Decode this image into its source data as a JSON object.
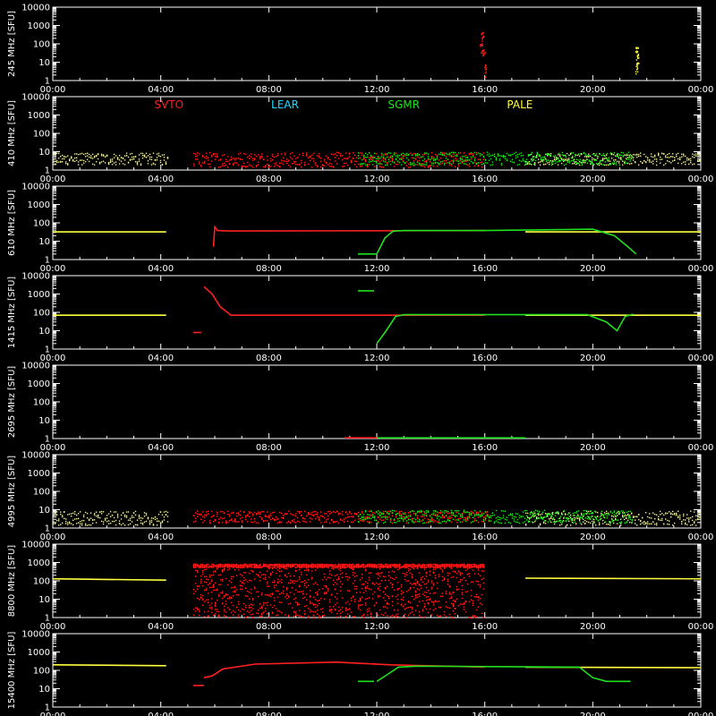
{
  "chart_data": {
    "type": "scatter",
    "x_unit": "UT",
    "x_ticks": [
      "00:00",
      "04:00",
      "08:00",
      "12:00",
      "16:00",
      "20:00",
      "00:00"
    ],
    "xlim_hours": [
      0,
      24
    ],
    "y_scale": "log",
    "ylim": [
      1,
      10000
    ],
    "y_ticks": [
      "1",
      "10",
      "100",
      "1000",
      "10000"
    ],
    "y_unit": "[SFU]",
    "legend_placement": "top-inside-second-panel",
    "legend": [
      {
        "name": "SVTO",
        "color": "#ff2020"
      },
      {
        "name": "LEAR",
        "color": "#20d8ff"
      },
      {
        "name": "SGMR",
        "color": "#20e020"
      },
      {
        "name": "PALE",
        "color": "#ffff40"
      }
    ],
    "panels": [
      {
        "label": "245 MHz",
        "series": [
          {
            "name": "SVTO",
            "segments": [
              {
                "t": [
                  15.85,
                  15.9,
                  15.95,
                  16.0
                ],
                "v": [
                  80,
                  300,
                  40,
                  5
                ],
                "scatter": true
              }
            ]
          },
          {
            "name": "PALE",
            "segments": [
              {
                "t": [
                  21.6,
                  21.62,
                  21.65
                ],
                "v": [
                  8,
                  60,
                  20
                ],
                "scatter": true
              }
            ]
          }
        ]
      },
      {
        "label": "410 MHz",
        "series": [
          {
            "name": "PALE",
            "segments": [
              {
                "t": [
                  0,
                  4.3
                ],
                "v": [
                  2,
                  9
                ],
                "band": true
              },
              {
                "t": [
                  17.5,
                  24
                ],
                "v": [
                  2,
                  9
                ],
                "band": true
              }
            ]
          },
          {
            "name": "SVTO",
            "segments": [
              {
                "t": [
                  5.2,
                  16
                ],
                "v": [
                  1.5,
                  10
                ],
                "band": true
              }
            ]
          },
          {
            "name": "SGMR",
            "segments": [
              {
                "t": [
                  11.3,
                  21.5
                ],
                "v": [
                  2,
                  10
                ],
                "band": true
              }
            ]
          }
        ]
      },
      {
        "label": "610 MHz",
        "series": [
          {
            "name": "PALE",
            "segments": [
              {
                "t": [
                  0,
                  4.2
                ],
                "v": [
                  32,
                  32
                ]
              },
              {
                "t": [
                  17.5,
                  24
                ],
                "v": [
                  32,
                  32
                ]
              }
            ]
          },
          {
            "name": "SVTO",
            "segments": [
              {
                "t": [
                  5.95,
                  6.0,
                  6.1,
                  6.5,
                  16
                ],
                "v": [
                  5,
                  60,
                  38,
                  36,
                  38
                ]
              }
            ]
          },
          {
            "name": "SGMR",
            "segments": [
              {
                "t": [
                  11.3,
                  11.8,
                  12.0
                ],
                "v": [
                  2,
                  2,
                  2
                ]
              },
              {
                "t": [
                  12.0,
                  12.3,
                  12.6,
                  13.0,
                  16,
                  20,
                  20.8,
                  21.3,
                  21.6
                ],
                "v": [
                  2,
                  15,
                  35,
                  38,
                  38,
                  45,
                  20,
                  5,
                  2
                ]
              }
            ]
          }
        ]
      },
      {
        "label": "1415 MHz",
        "series": [
          {
            "name": "PALE",
            "segments": [
              {
                "t": [
                  0,
                  4.2
                ],
                "v": [
                  70,
                  70
                ]
              },
              {
                "t": [
                  17.5,
                  24
                ],
                "v": [
                  70,
                  70
                ]
              }
            ]
          },
          {
            "name": "SVTO",
            "segments": [
              {
                "t": [
                  5.2,
                  5.5
                ],
                "v": [
                  8,
                  8
                ]
              },
              {
                "t": [
                  5.6,
                  5.9,
                  6.2,
                  6.6,
                  16
                ],
                "v": [
                  2500,
                  1000,
                  200,
                  70,
                  70
                ]
              }
            ]
          },
          {
            "name": "SGMR",
            "segments": [
              {
                "t": [
                  11.3,
                  11.9
                ],
                "v": [
                  1500,
                  1500
                ]
              },
              {
                "t": [
                  12.0,
                  12.3,
                  12.7,
                  13.0,
                  19.8,
                  20.5,
                  20.9,
                  21.2,
                  21.5
                ],
                "v": [
                  2,
                  8,
                  60,
                  75,
                  75,
                  30,
                  10,
                  60,
                  80
                ]
              }
            ]
          }
        ]
      },
      {
        "label": "2695 MHz",
        "series": [
          {
            "name": "SVTO",
            "segments": [
              {
                "t": [
                  10.8,
                  12.0
                ],
                "v": [
                  1.1,
                  1.1
                ]
              }
            ]
          },
          {
            "name": "SGMR",
            "segments": [
              {
                "t": [
                  12.0,
                  17.5
                ],
                "v": [
                  1.1,
                  1.1
                ]
              }
            ]
          }
        ]
      },
      {
        "label": "4995 MHz",
        "series": [
          {
            "name": "PALE",
            "segments": [
              {
                "t": [
                  0,
                  4.3
                ],
                "v": [
                  1.5,
                  9
                ],
                "band": true
              },
              {
                "t": [
                  17.5,
                  24
                ],
                "v": [
                  1.5,
                  9
                ],
                "band": true
              }
            ]
          },
          {
            "name": "SVTO",
            "segments": [
              {
                "t": [
                  5.2,
                  16.2
                ],
                "v": [
                  2,
                  9
                ],
                "band": true
              }
            ]
          },
          {
            "name": "SGMR",
            "segments": [
              {
                "t": [
                  11.3,
                  21.5
                ],
                "v": [
                  2,
                  10
                ],
                "band": true
              }
            ]
          }
        ]
      },
      {
        "label": "8800 MHz",
        "series": [
          {
            "name": "PALE",
            "segments": [
              {
                "t": [
                  0,
                  4.2
                ],
                "v": [
                  130,
                  110
                ]
              },
              {
                "t": [
                  17.5,
                  24
                ],
                "v": [
                  140,
                  130
                ]
              }
            ]
          },
          {
            "name": "SVTO",
            "segments": [
              {
                "t": [
                  5.2,
                  16.0
                ],
                "v": [
                  1,
                  800
                ],
                "band": true
              }
            ]
          }
        ]
      },
      {
        "label": "15400 MHz",
        "series": [
          {
            "name": "PALE",
            "segments": [
              {
                "t": [
                  0,
                  4.2
                ],
                "v": [
                  200,
                  180
                ]
              },
              {
                "t": [
                  17.5,
                  24
                ],
                "v": [
                  150,
                  140
                ]
              }
            ]
          },
          {
            "name": "SVTO",
            "segments": [
              {
                "t": [
                  5.2,
                  5.6
                ],
                "v": [
                  15,
                  15
                ]
              },
              {
                "t": [
                  5.6,
                  5.9,
                  6.3,
                  7.5,
                  10.5,
                  12.5,
                  16.0
                ],
                "v": [
                  40,
                  50,
                  120,
                  220,
                  280,
                  200,
                  150
                ]
              }
            ]
          },
          {
            "name": "SGMR",
            "segments": [
              {
                "t": [
                  11.3,
                  11.9
                ],
                "v": [
                  25,
                  25
                ]
              },
              {
                "t": [
                  12.0,
                  12.4,
                  12.8,
                  13.5,
                  19.5,
                  20.0,
                  20.5,
                  21.4
                ],
                "v": [
                  25,
                  60,
                  150,
                  170,
                  150,
                  40,
                  25,
                  25
                ]
              }
            ]
          }
        ]
      }
    ]
  }
}
